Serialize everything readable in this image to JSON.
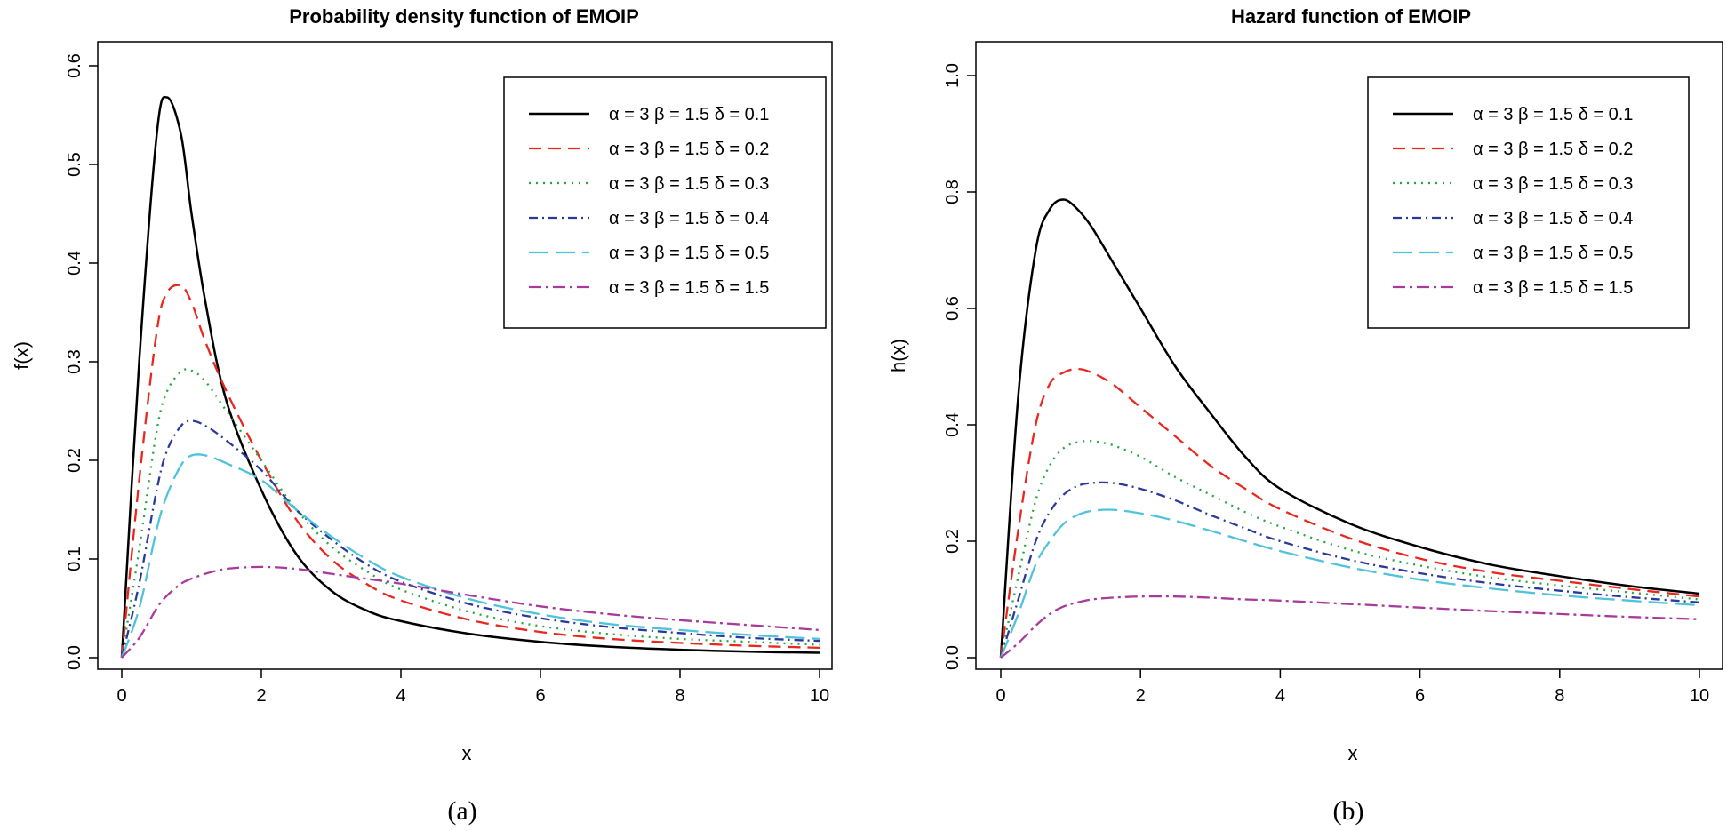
{
  "chart_data": [
    {
      "panel_caption": "(a)",
      "type": "line",
      "title": "Probability density function of EMOIP",
      "xlabel": "x",
      "ylabel": "f(x)",
      "xlim": [
        0,
        10
      ],
      "ylim": [
        0,
        0.6
      ],
      "xticks": [
        "0",
        "2",
        "4",
        "6",
        "8",
        "10"
      ],
      "yticks": [
        "0.0",
        "0.1",
        "0.2",
        "0.3",
        "0.4",
        "0.5",
        "0.6"
      ],
      "legend_position": "top-right",
      "x": [
        0,
        0.25,
        0.5,
        0.65,
        0.85,
        1,
        1.2,
        1.5,
        2,
        2.5,
        3,
        3.5,
        4,
        5,
        6,
        7,
        8,
        9,
        10
      ],
      "series": [
        {
          "name": "α = 3  β = 1.5  δ = 0.1",
          "color": "#000000",
          "dash": "",
          "values": [
            0,
            0.3,
            0.53,
            0.568,
            0.53,
            0.45,
            0.36,
            0.26,
            0.17,
            0.105,
            0.068,
            0.048,
            0.037,
            0.024,
            0.016,
            0.011,
            0.008,
            0.006,
            0.005
          ]
        },
        {
          "name": "α = 3  β = 1.5  δ = 0.2",
          "color": "#e8281e",
          "dash": "14,8",
          "values": [
            0,
            0.18,
            0.33,
            0.37,
            0.377,
            0.36,
            0.32,
            0.27,
            0.2,
            0.14,
            0.1,
            0.075,
            0.058,
            0.038,
            0.026,
            0.019,
            0.015,
            0.012,
            0.01
          ]
        },
        {
          "name": "α = 3  β = 1.5  δ = 0.3",
          "color": "#22a640",
          "dash": "2,6",
          "values": [
            0,
            0.11,
            0.23,
            0.27,
            0.29,
            0.291,
            0.28,
            0.25,
            0.2,
            0.15,
            0.113,
            0.088,
            0.069,
            0.046,
            0.032,
            0.024,
            0.019,
            0.016,
            0.013
          ]
        },
        {
          "name": "α = 3  β = 1.5  δ = 0.4",
          "color": "#2b3a9a",
          "dash": "10,5,2,5",
          "values": [
            0,
            0.075,
            0.17,
            0.21,
            0.235,
            0.24,
            0.235,
            0.22,
            0.19,
            0.15,
            0.12,
            0.095,
            0.077,
            0.054,
            0.04,
            0.031,
            0.025,
            0.02,
            0.017
          ]
        },
        {
          "name": "α = 3  β = 1.5  δ = 0.5",
          "color": "#4fc3d9",
          "dash": "22,8",
          "values": [
            0,
            0.05,
            0.13,
            0.165,
            0.195,
            0.205,
            0.205,
            0.197,
            0.18,
            0.15,
            0.123,
            0.1,
            0.082,
            0.059,
            0.044,
            0.034,
            0.028,
            0.023,
            0.019
          ]
        },
        {
          "name": "α = 3  β = 1.5  δ = 1.5",
          "color": "#a83a9c",
          "dash": "14,5,3,5",
          "values": [
            0,
            0.02,
            0.05,
            0.063,
            0.075,
            0.08,
            0.085,
            0.09,
            0.092,
            0.09,
            0.085,
            0.08,
            0.075,
            0.063,
            0.052,
            0.044,
            0.038,
            0.033,
            0.028
          ]
        }
      ]
    },
    {
      "panel_caption": "(b)",
      "type": "line",
      "title": "Hazard function of EMOIP",
      "xlabel": "x",
      "ylabel": "h(x)",
      "xlim": [
        0,
        10
      ],
      "ylim": [
        0,
        1.0
      ],
      "xticks": [
        "0",
        "2",
        "4",
        "6",
        "8",
        "10"
      ],
      "yticks": [
        "0.0",
        "0.2",
        "0.4",
        "0.6",
        "0.8",
        "1.0"
      ],
      "legend_position": "top-right",
      "x": [
        0,
        0.25,
        0.5,
        0.7,
        0.9,
        1.1,
        1.3,
        1.6,
        2,
        2.5,
        3,
        3.5,
        4,
        5,
        6,
        7,
        8,
        9,
        10
      ],
      "series": [
        {
          "name": "α = 3  β = 1.5  δ = 0.1",
          "color": "#000000",
          "dash": "",
          "values": [
            0,
            0.45,
            0.7,
            0.77,
            0.787,
            0.77,
            0.74,
            0.68,
            0.6,
            0.5,
            0.42,
            0.345,
            0.29,
            0.23,
            0.19,
            0.16,
            0.14,
            0.123,
            0.11
          ]
        },
        {
          "name": "α = 3  β = 1.5  δ = 0.2",
          "color": "#e8281e",
          "dash": "14,8",
          "values": [
            0,
            0.22,
            0.4,
            0.47,
            0.49,
            0.496,
            0.49,
            0.47,
            0.43,
            0.38,
            0.33,
            0.29,
            0.255,
            0.205,
            0.17,
            0.147,
            0.132,
            0.118,
            0.105
          ]
        },
        {
          "name": "α = 3  β = 1.5  δ = 0.3",
          "color": "#22a640",
          "dash": "2,6",
          "values": [
            0,
            0.14,
            0.27,
            0.33,
            0.36,
            0.37,
            0.372,
            0.365,
            0.345,
            0.31,
            0.28,
            0.25,
            0.225,
            0.185,
            0.158,
            0.138,
            0.124,
            0.112,
            0.1
          ]
        },
        {
          "name": "α = 3  β = 1.5  δ = 0.4",
          "color": "#2b3a9a",
          "dash": "10,5,2,5",
          "values": [
            0,
            0.1,
            0.2,
            0.25,
            0.28,
            0.295,
            0.3,
            0.3,
            0.29,
            0.27,
            0.245,
            0.222,
            0.2,
            0.168,
            0.145,
            0.128,
            0.115,
            0.104,
            0.095
          ]
        },
        {
          "name": "α = 3  β = 1.5  δ = 0.5",
          "color": "#4fc3d9",
          "dash": "22,8",
          "values": [
            0,
            0.075,
            0.16,
            0.2,
            0.23,
            0.245,
            0.252,
            0.254,
            0.248,
            0.235,
            0.218,
            0.2,
            0.183,
            0.155,
            0.134,
            0.119,
            0.107,
            0.098,
            0.09
          ]
        },
        {
          "name": "α = 3  β = 1.5  δ = 1.5",
          "color": "#a83a9c",
          "dash": "14,5,3,5",
          "values": [
            0,
            0.025,
            0.055,
            0.075,
            0.088,
            0.095,
            0.1,
            0.103,
            0.105,
            0.105,
            0.103,
            0.1,
            0.098,
            0.092,
            0.086,
            0.08,
            0.075,
            0.07,
            0.066
          ]
        }
      ]
    }
  ]
}
